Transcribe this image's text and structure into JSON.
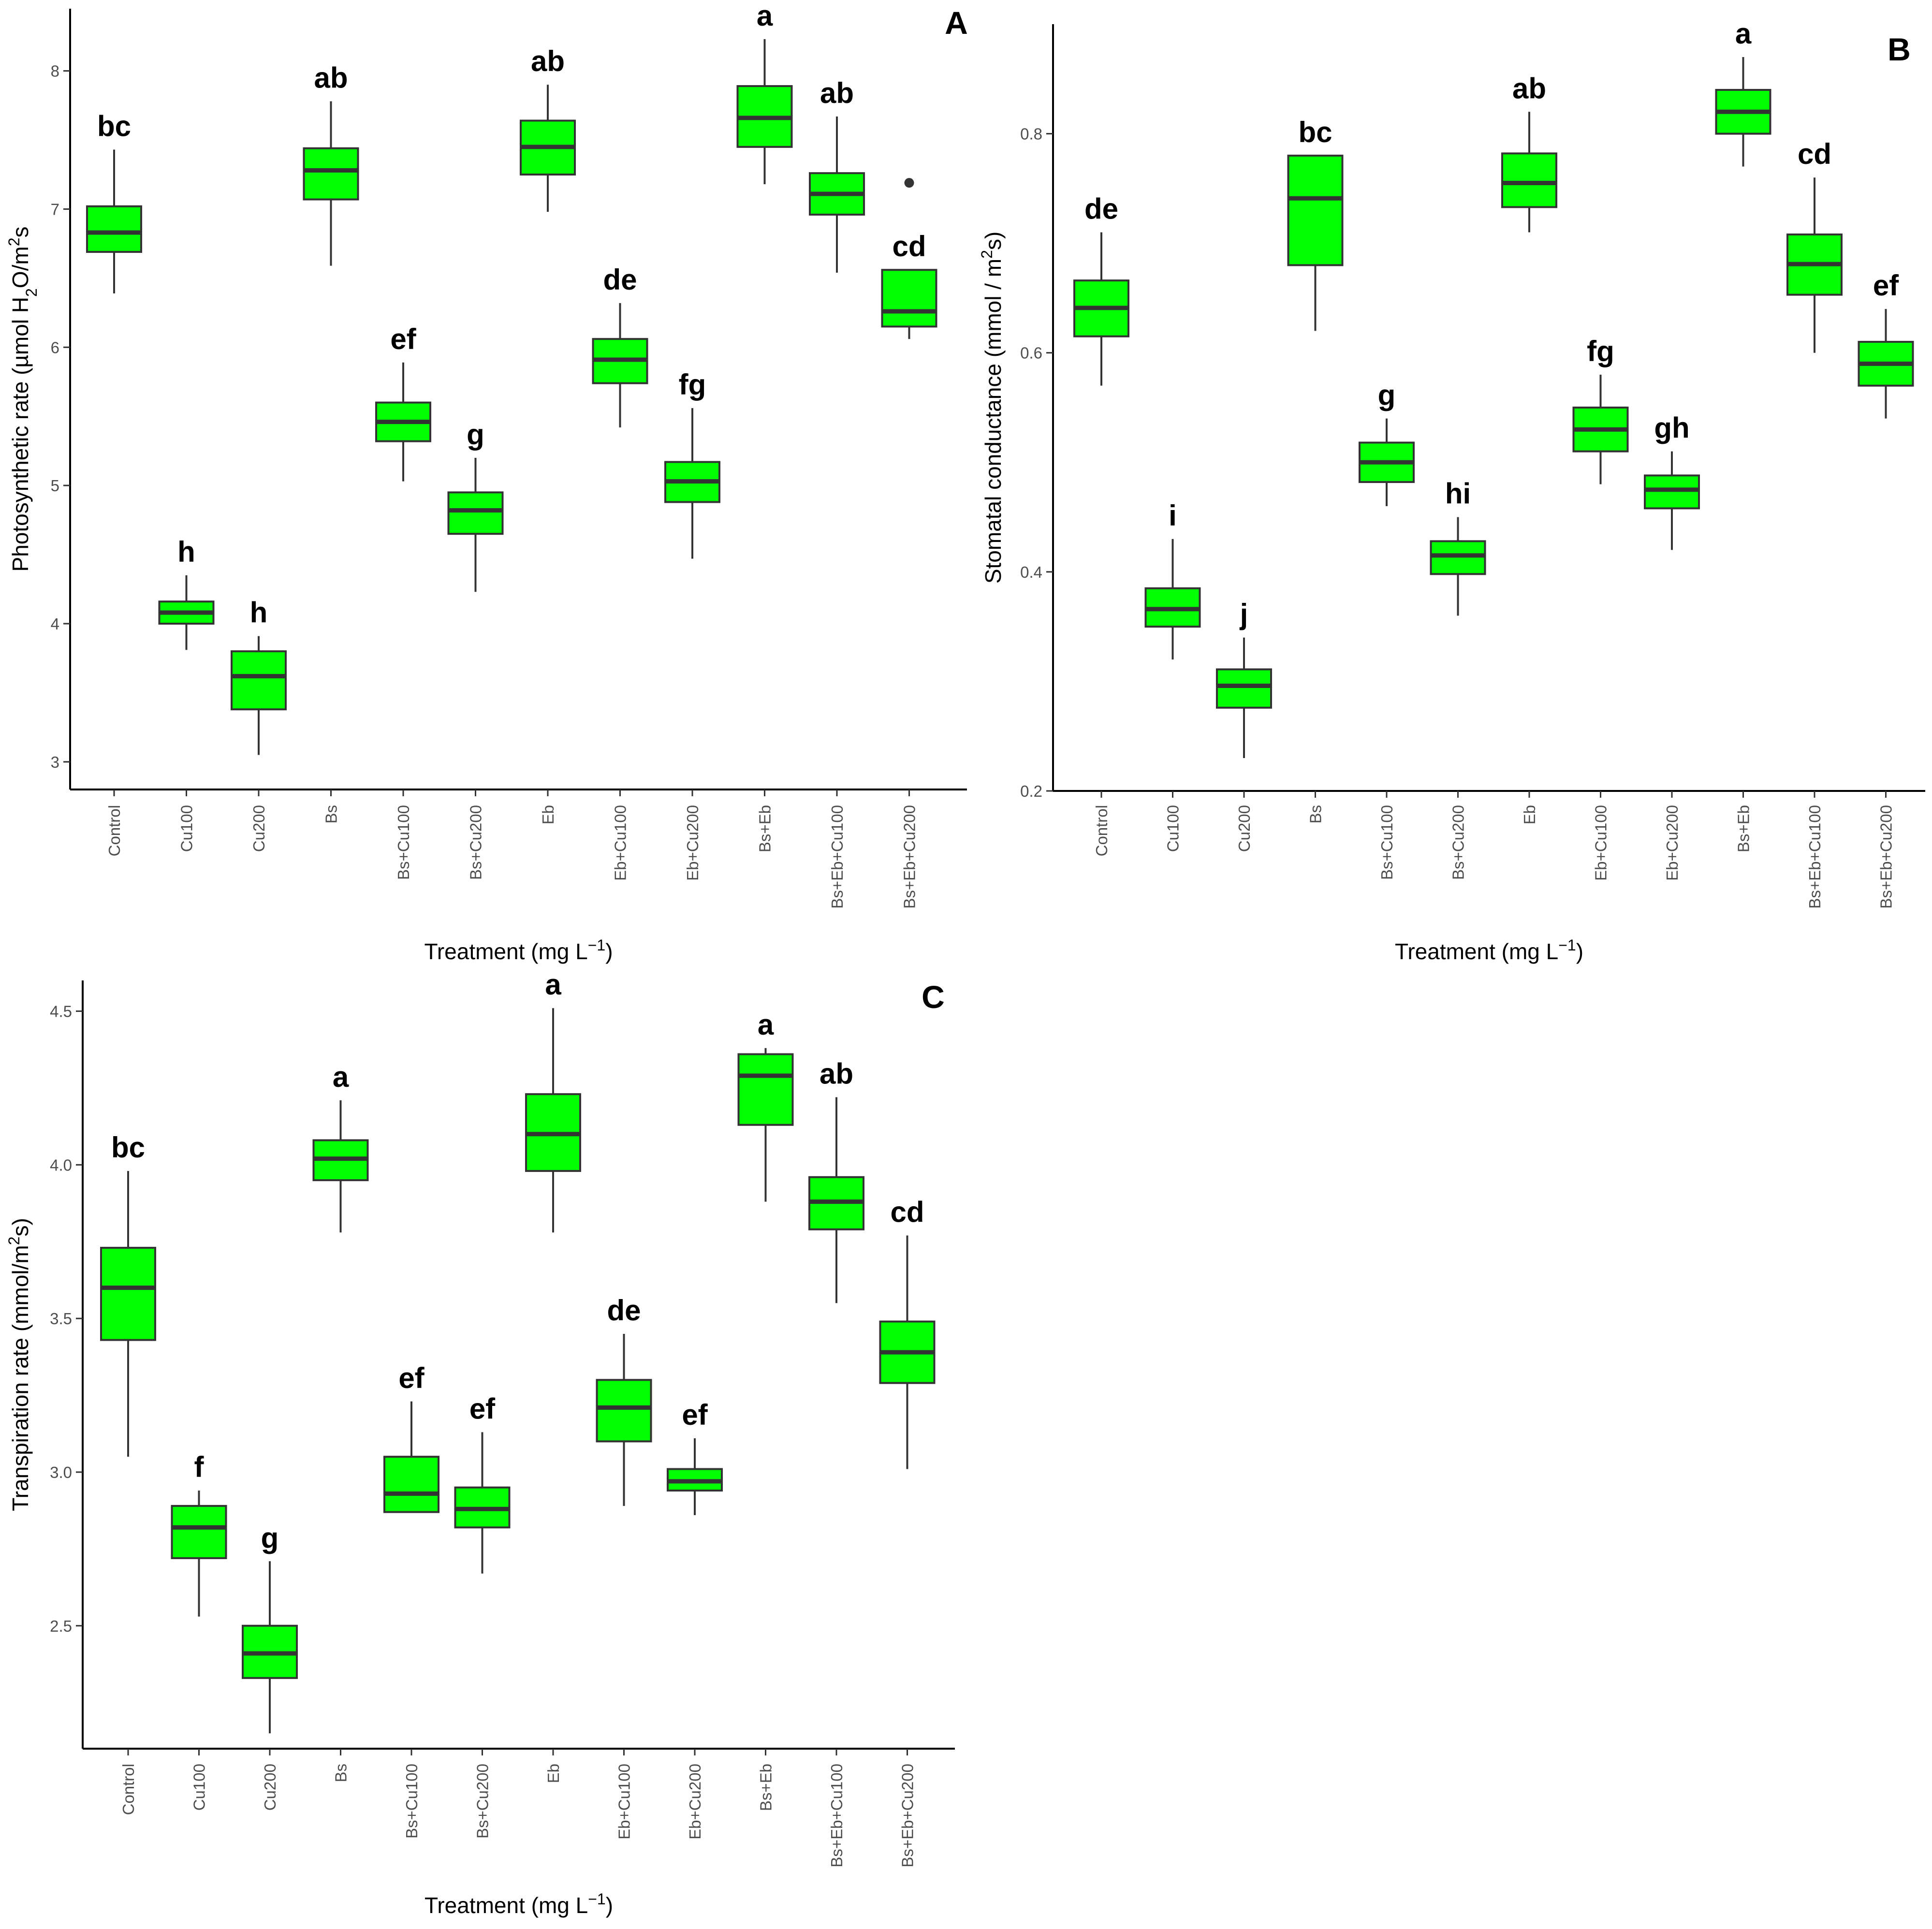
{
  "chart_data": [
    {
      "type": "box",
      "panel_label": "A",
      "xlabel": "Treatment (mg L",
      "xlabel_sup": "−1",
      "xlabel_end": ")",
      "ylabel_parts": [
        "Photosynthetic rate (µmol H",
        "2",
        "O/m",
        "2",
        "s"
      ],
      "ylim": [
        2.8,
        8.45
      ],
      "yticks": [
        3,
        4,
        5,
        6,
        7,
        8
      ],
      "box_color": "#00ff00",
      "categories": [
        "Control",
        "Cu100",
        "Cu200",
        "Bs",
        "Bs+Cu100",
        "Bs+Cu200",
        "Eb",
        "Eb+Cu100",
        "Eb+Cu200",
        "Bs+Eb",
        "Bs+Eb+Cu100",
        "Bs+Eb+Cu200"
      ],
      "boxes": [
        {
          "min": 6.39,
          "q1": 6.69,
          "median": 6.83,
          "q3": 7.02,
          "max": 7.43,
          "letter": "bc"
        },
        {
          "min": 3.81,
          "q1": 4.0,
          "median": 4.08,
          "q3": 4.16,
          "max": 4.35,
          "letter": "h"
        },
        {
          "min": 3.05,
          "q1": 3.38,
          "median": 3.62,
          "q3": 3.8,
          "max": 3.91,
          "letter": "h"
        },
        {
          "min": 6.59,
          "q1": 7.07,
          "median": 7.28,
          "q3": 7.44,
          "max": 7.78,
          "letter": "ab"
        },
        {
          "min": 5.03,
          "q1": 5.32,
          "median": 5.46,
          "q3": 5.6,
          "max": 5.89,
          "letter": "ef"
        },
        {
          "min": 4.23,
          "q1": 4.65,
          "median": 4.82,
          "q3": 4.95,
          "max": 5.2,
          "letter": "g"
        },
        {
          "min": 6.98,
          "q1": 7.25,
          "median": 7.45,
          "q3": 7.64,
          "max": 7.9,
          "letter": "ab"
        },
        {
          "min": 5.42,
          "q1": 5.74,
          "median": 5.91,
          "q3": 6.06,
          "max": 6.32,
          "letter": "de"
        },
        {
          "min": 4.47,
          "q1": 4.88,
          "median": 5.03,
          "q3": 5.17,
          "max": 5.56,
          "letter": "fg"
        },
        {
          "min": 7.18,
          "q1": 7.45,
          "median": 7.66,
          "q3": 7.89,
          "max": 8.23,
          "letter": "a"
        },
        {
          "min": 6.54,
          "q1": 6.96,
          "median": 7.11,
          "q3": 7.26,
          "max": 7.67,
          "letter": "ab"
        },
        {
          "min": 6.06,
          "q1": 6.15,
          "median": 6.26,
          "q3": 6.56,
          "max": 6.56,
          "letter": "cd",
          "outliers": [
            7.19
          ]
        }
      ]
    },
    {
      "type": "box",
      "panel_label": "B",
      "xlabel": "Treatment (mg L",
      "xlabel_sup": "−1",
      "xlabel_end": ")",
      "ylabel_parts": [
        "Stomatal conductance (mmol / m",
        "2",
        "s)"
      ],
      "ylim": [
        0.2,
        0.9
      ],
      "yticks": [
        0.2,
        0.4,
        0.6,
        0.8
      ],
      "box_color": "#00ff00",
      "categories": [
        "Control",
        "Cu100",
        "Cu200",
        "Bs",
        "Bs+Cu100",
        "Bs+Cu200",
        "Eb",
        "Eb+Cu100",
        "Eb+Cu200",
        "Bs+Eb",
        "Bs+Eb+Cu100",
        "Bs+Eb+Cu200"
      ],
      "boxes": [
        {
          "min": 0.57,
          "q1": 0.615,
          "median": 0.641,
          "q3": 0.666,
          "max": 0.71,
          "letter": "de"
        },
        {
          "min": 0.32,
          "q1": 0.35,
          "median": 0.366,
          "q3": 0.385,
          "max": 0.43,
          "letter": "i"
        },
        {
          "min": 0.23,
          "q1": 0.276,
          "median": 0.296,
          "q3": 0.311,
          "max": 0.34,
          "letter": "j"
        },
        {
          "min": 0.62,
          "q1": 0.68,
          "median": 0.741,
          "q3": 0.78,
          "max": 0.78,
          "letter": "bc"
        },
        {
          "min": 0.46,
          "q1": 0.482,
          "median": 0.5,
          "q3": 0.518,
          "max": 0.54,
          "letter": "g"
        },
        {
          "min": 0.36,
          "q1": 0.398,
          "median": 0.415,
          "q3": 0.428,
          "max": 0.45,
          "letter": "hi"
        },
        {
          "min": 0.71,
          "q1": 0.733,
          "median": 0.755,
          "q3": 0.782,
          "max": 0.82,
          "letter": "ab"
        },
        {
          "min": 0.48,
          "q1": 0.51,
          "median": 0.53,
          "q3": 0.55,
          "max": 0.58,
          "letter": "fg"
        },
        {
          "min": 0.42,
          "q1": 0.458,
          "median": 0.475,
          "q3": 0.488,
          "max": 0.51,
          "letter": "gh"
        },
        {
          "min": 0.77,
          "q1": 0.8,
          "median": 0.82,
          "q3": 0.84,
          "max": 0.87,
          "letter": "a"
        },
        {
          "min": 0.6,
          "q1": 0.653,
          "median": 0.681,
          "q3": 0.708,
          "max": 0.76,
          "letter": "cd"
        },
        {
          "min": 0.54,
          "q1": 0.57,
          "median": 0.59,
          "q3": 0.61,
          "max": 0.64,
          "letter": "ef"
        }
      ]
    },
    {
      "type": "box",
      "panel_label": "C",
      "xlabel": "Treatment (mg L",
      "xlabel_sup": "−1",
      "xlabel_end": ")",
      "ylabel_parts": [
        "Transpiration rate (mmol/m",
        "2",
        "s)"
      ],
      "ylim": [
        2.1,
        4.6
      ],
      "yticks": [
        2.5,
        3.0,
        3.5,
        4.0,
        4.5
      ],
      "box_color": "#00ff00",
      "categories": [
        "Control",
        "Cu100",
        "Cu200",
        "Bs",
        "Bs+Cu100",
        "Bs+Cu200",
        "Eb",
        "Eb+Cu100",
        "Eb+Cu200",
        "Bs+Eb",
        "Bs+Eb+Cu100",
        "Bs+Eb+Cu200"
      ],
      "boxes": [
        {
          "min": 3.05,
          "q1": 3.43,
          "median": 3.6,
          "q3": 3.73,
          "max": 3.98,
          "letter": "bc"
        },
        {
          "min": 2.53,
          "q1": 2.72,
          "median": 2.82,
          "q3": 2.89,
          "max": 2.94,
          "letter": "f"
        },
        {
          "min": 2.15,
          "q1": 2.33,
          "median": 2.41,
          "q3": 2.5,
          "max": 2.71,
          "letter": "g"
        },
        {
          "min": 3.78,
          "q1": 3.95,
          "median": 4.02,
          "q3": 4.08,
          "max": 4.21,
          "letter": "a"
        },
        {
          "min": 2.87,
          "q1": 2.87,
          "median": 2.93,
          "q3": 3.05,
          "max": 3.23,
          "letter": "ef"
        },
        {
          "min": 2.67,
          "q1": 2.82,
          "median": 2.88,
          "q3": 2.95,
          "max": 3.13,
          "letter": "ef"
        },
        {
          "min": 3.78,
          "q1": 3.98,
          "median": 4.1,
          "q3": 4.23,
          "max": 4.51,
          "letter": "a"
        },
        {
          "min": 2.89,
          "q1": 3.1,
          "median": 3.21,
          "q3": 3.3,
          "max": 3.45,
          "letter": "de"
        },
        {
          "min": 2.86,
          "q1": 2.94,
          "median": 2.97,
          "q3": 3.01,
          "max": 3.11,
          "letter": "ef"
        },
        {
          "min": 3.88,
          "q1": 4.13,
          "median": 4.29,
          "q3": 4.36,
          "max": 4.38,
          "letter": "a"
        },
        {
          "min": 3.55,
          "q1": 3.79,
          "median": 3.88,
          "q3": 3.96,
          "max": 4.22,
          "letter": "ab"
        },
        {
          "min": 3.01,
          "q1": 3.29,
          "median": 3.39,
          "q3": 3.49,
          "max": 3.77,
          "letter": "cd"
        }
      ]
    }
  ]
}
